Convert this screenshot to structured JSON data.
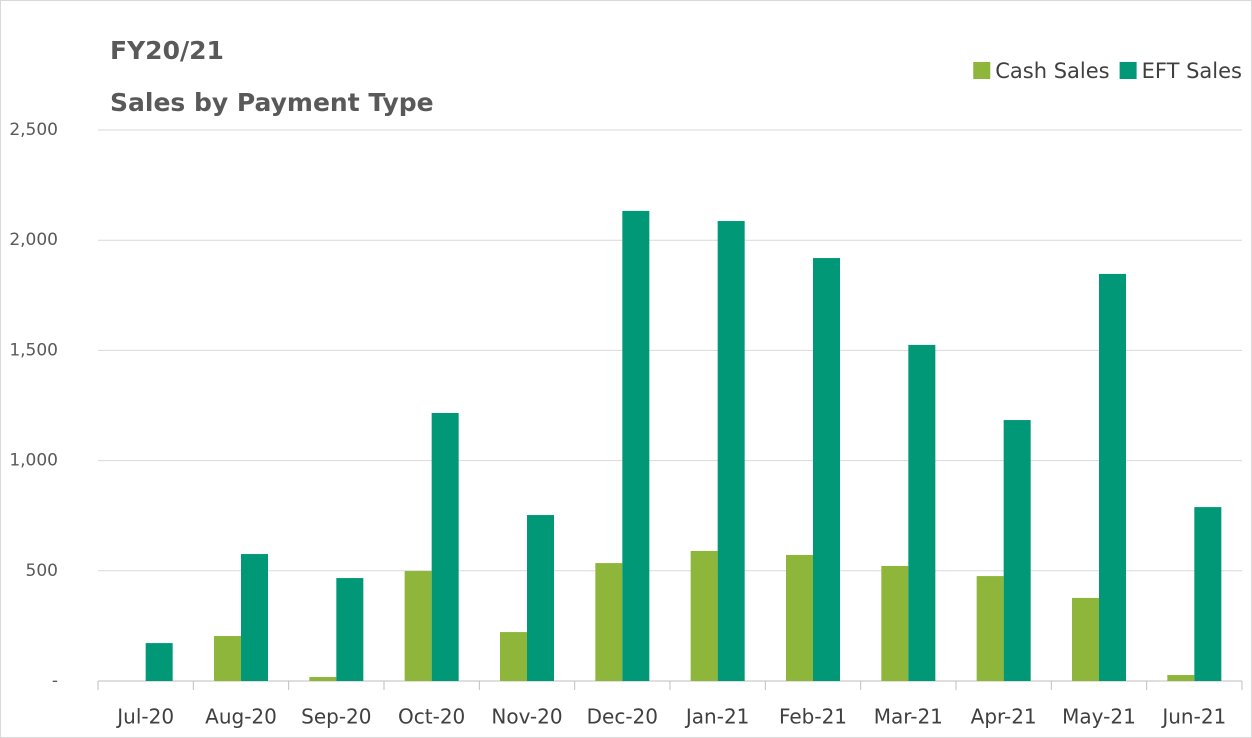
{
  "chart_data": {
    "type": "bar",
    "title": "FY20/21",
    "subtitle": "Sales by Payment Type",
    "categories": [
      "Jul-20",
      "Aug-20",
      "Sep-20",
      "Oct-20",
      "Nov-20",
      "Dec-20",
      "Jan-21",
      "Feb-21",
      "Mar-21",
      "Apr-21",
      "May-21",
      "Jun-21"
    ],
    "series": [
      {
        "name": "Cash Sales",
        "color": "#8db63a",
        "values": [
          0,
          204,
          18,
          499,
          222,
          535,
          590,
          572,
          522,
          476,
          377,
          27
        ]
      },
      {
        "name": "EFT Sales",
        "color": "#009877",
        "values": [
          172,
          576,
          467,
          1216,
          753,
          2133,
          2087,
          1919,
          1525,
          1184,
          1847,
          789
        ]
      }
    ],
    "ylim": [
      0,
      2500
    ],
    "yticks": [
      {
        "value": 0,
        "label": "-"
      },
      500,
      {
        "value": 1000,
        "label": "1,000"
      },
      {
        "value": 1500,
        "label": "1,500"
      },
      {
        "value": 2000,
        "label": "2,000"
      },
      {
        "value": 2500,
        "label": "2,500"
      }
    ],
    "grid": true,
    "legend": "top-right"
  }
}
